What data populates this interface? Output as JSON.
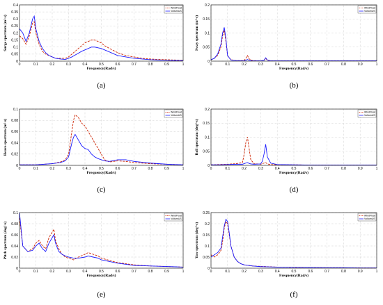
{
  "chart_data": [
    {
      "type": "line",
      "caption": "(a)",
      "xlabel": "Frequency(Rad/s)",
      "ylabel": "Surge spectrum (m²·s)",
      "xlim": [
        0,
        1
      ],
      "ylim": [
        0,
        0.4
      ],
      "xticks": [
        "0",
        "0.1",
        "0.2",
        "0.3",
        "0.4",
        "0.5",
        "0.6",
        "0.7",
        "0.8",
        "0.9",
        "1"
      ],
      "yticks": [
        "0",
        "0.05",
        "0.1",
        "0.15",
        "0.2",
        "0.25",
        "0.3",
        "0.35",
        "0.4"
      ],
      "grid": true,
      "legend": [
        "WindFloat",
        "VolturnUS"
      ],
      "legend_position": "top-right",
      "x": [
        0,
        0.02,
        0.04,
        0.06,
        0.08,
        0.09,
        0.1,
        0.12,
        0.14,
        0.16,
        0.18,
        0.2,
        0.22,
        0.25,
        0.28,
        0.3,
        0.32,
        0.35,
        0.38,
        0.4,
        0.42,
        0.44,
        0.46,
        0.48,
        0.5,
        0.52,
        0.55,
        0.6,
        0.65,
        0.7,
        0.75,
        0.8,
        0.85,
        0.9,
        0.95,
        1
      ],
      "series": [
        {
          "name": "WindFloat",
          "color": "#cc2200",
          "dash": "3,1.5",
          "values": [
            0.18,
            0.16,
            0.12,
            0.18,
            0.27,
            0.28,
            0.2,
            0.12,
            0.07,
            0.05,
            0.04,
            0.03,
            0.02,
            0.02,
            0.02,
            0.03,
            0.05,
            0.08,
            0.11,
            0.13,
            0.14,
            0.15,
            0.15,
            0.14,
            0.13,
            0.11,
            0.09,
            0.06,
            0.04,
            0.03,
            0.02,
            0.015,
            0.012,
            0.01,
            0.008,
            0.006
          ]
        },
        {
          "name": "VolturnUS",
          "color": "#1a1aff",
          "dash": "",
          "values": [
            0.23,
            0.2,
            0.14,
            0.2,
            0.3,
            0.32,
            0.23,
            0.14,
            0.09,
            0.06,
            0.04,
            0.03,
            0.02,
            0.015,
            0.012,
            0.02,
            0.03,
            0.05,
            0.07,
            0.08,
            0.09,
            0.1,
            0.1,
            0.095,
            0.09,
            0.08,
            0.065,
            0.04,
            0.03,
            0.02,
            0.015,
            0.01,
            0.008,
            0.006,
            0.005,
            0.004
          ]
        }
      ]
    },
    {
      "type": "line",
      "caption": "(b)",
      "xlabel": "Frequency(Rad/s)",
      "ylabel": "Sway spectrum (m²·s)",
      "xlim": [
        0,
        1
      ],
      "ylim": [
        0,
        0.2
      ],
      "xticks": [
        "0",
        "0.1",
        "0.2",
        "0.3",
        "0.4",
        "0.5",
        "0.6",
        "0.7",
        "0.8",
        "0.9",
        "1"
      ],
      "yticks": [
        "0",
        "0.05",
        "0.1",
        "0.15",
        "0.2"
      ],
      "grid": true,
      "legend": [
        "WindFloat",
        "VolturnUS"
      ],
      "legend_position": "top-right",
      "x": [
        0,
        0.02,
        0.04,
        0.06,
        0.07,
        0.08,
        0.09,
        0.1,
        0.12,
        0.15,
        0.2,
        0.21,
        0.22,
        0.23,
        0.25,
        0.3,
        0.32,
        0.33,
        0.34,
        0.36,
        0.4,
        0.5,
        0.6,
        0.7,
        0.8,
        0.9,
        1
      ],
      "series": [
        {
          "name": "WindFloat",
          "color": "#cc2200",
          "dash": "3,1.5",
          "values": [
            0.005,
            0.01,
            0.02,
            0.05,
            0.09,
            0.11,
            0.07,
            0.02,
            0.005,
            0.002,
            0.002,
            0.01,
            0.02,
            0.008,
            0.002,
            0.001,
            0.003,
            0.01,
            0.003,
            0.001,
            0.001,
            0.001,
            0.001,
            0.001,
            0.001,
            0.001,
            0.001
          ]
        },
        {
          "name": "VolturnUS",
          "color": "#1a1aff",
          "dash": "",
          "values": [
            0.005,
            0.01,
            0.025,
            0.06,
            0.1,
            0.12,
            0.08,
            0.02,
            0.004,
            0.002,
            0.001,
            0.003,
            0.006,
            0.003,
            0.001,
            0.001,
            0.003,
            0.012,
            0.004,
            0.001,
            0.001,
            0.001,
            0.001,
            0.001,
            0.001,
            0.001,
            0.001
          ]
        }
      ]
    },
    {
      "type": "line",
      "caption": "(c)",
      "xlabel": "Frequency(Rad/s)",
      "ylabel": "Heave spectrum (m²·s)",
      "xlim": [
        0,
        1
      ],
      "ylim": [
        0,
        0.1
      ],
      "xticks": [
        "0",
        "0.1",
        "0.2",
        "0.3",
        "0.4",
        "0.5",
        "0.6",
        "0.7",
        "0.8",
        "0.9",
        "1"
      ],
      "yticks": [
        "0",
        "0.02",
        "0.04",
        "0.06",
        "0.08",
        "0.1"
      ],
      "grid": true,
      "legend": [
        "WindFloat",
        "VolturnUS"
      ],
      "legend_position": "top-right",
      "x": [
        0,
        0.05,
        0.1,
        0.15,
        0.2,
        0.25,
        0.28,
        0.3,
        0.32,
        0.33,
        0.34,
        0.36,
        0.38,
        0.4,
        0.42,
        0.44,
        0.46,
        0.48,
        0.5,
        0.52,
        0.55,
        0.6,
        0.65,
        0.7,
        0.8,
        0.9,
        1
      ],
      "series": [
        {
          "name": "WindFloat",
          "color": "#cc2200",
          "dash": "3,1.5",
          "values": [
            0.001,
            0.001,
            0.001,
            0.002,
            0.003,
            0.006,
            0.01,
            0.02,
            0.06,
            0.08,
            0.09,
            0.085,
            0.075,
            0.07,
            0.06,
            0.05,
            0.04,
            0.03,
            0.02,
            0.01,
            0.006,
            0.008,
            0.007,
            0.005,
            0.003,
            0.002,
            0.001
          ]
        },
        {
          "name": "VolturnUS",
          "color": "#1a1aff",
          "dash": "",
          "values": [
            0.001,
            0.001,
            0.001,
            0.002,
            0.003,
            0.005,
            0.008,
            0.015,
            0.04,
            0.05,
            0.055,
            0.045,
            0.035,
            0.03,
            0.028,
            0.02,
            0.015,
            0.012,
            0.01,
            0.008,
            0.007,
            0.01,
            0.01,
            0.007,
            0.004,
            0.002,
            0.001
          ]
        }
      ]
    },
    {
      "type": "line",
      "caption": "(d)",
      "xlabel": "Frequency(Rad/s)",
      "ylabel": "Roll spectrum (deg²·s)",
      "xlim": [
        0,
        1
      ],
      "ylim": [
        0,
        0.2
      ],
      "xticks": [
        "0",
        "0.1",
        "0.2",
        "0.3",
        "0.4",
        "0.5",
        "0.6",
        "0.7",
        "0.8",
        "0.9",
        "1"
      ],
      "yticks": [
        "0",
        "0.05",
        "0.1",
        "0.15",
        "0.2"
      ],
      "grid": true,
      "legend": [
        "WindFloat",
        "VolturnUS"
      ],
      "legend_position": "top-right",
      "x": [
        0,
        0.05,
        0.1,
        0.15,
        0.19,
        0.2,
        0.21,
        0.22,
        0.23,
        0.24,
        0.26,
        0.3,
        0.31,
        0.32,
        0.33,
        0.34,
        0.36,
        0.4,
        0.5,
        0.6,
        0.7,
        0.8,
        0.9,
        1
      ],
      "series": [
        {
          "name": "WindFloat",
          "color": "#cc2200",
          "dash": "3,1.5",
          "values": [
            0.002,
            0.003,
            0.004,
            0.006,
            0.01,
            0.04,
            0.08,
            0.1,
            0.06,
            0.02,
            0.006,
            0.004,
            0.006,
            0.008,
            0.01,
            0.005,
            0.003,
            0.002,
            0.002,
            0.001,
            0.001,
            0.001,
            0.001,
            0.001
          ]
        },
        {
          "name": "VolturnUS",
          "color": "#1a1aff",
          "dash": "",
          "values": [
            0.002,
            0.002,
            0.003,
            0.004,
            0.004,
            0.006,
            0.008,
            0.01,
            0.007,
            0.005,
            0.004,
            0.005,
            0.015,
            0.04,
            0.075,
            0.03,
            0.008,
            0.003,
            0.002,
            0.001,
            0.001,
            0.001,
            0.001,
            0.001
          ]
        }
      ]
    },
    {
      "type": "line",
      "caption": "(e)",
      "xlabel": "Frequency(Rad/s)",
      "ylabel": "Pitch spectrum (deg²·s)",
      "xlim": [
        0,
        1
      ],
      "ylim": [
        0,
        0.1
      ],
      "xticks": [
        "0",
        "0.1",
        "0.2",
        "0.3",
        "0.4",
        "0.5",
        "0.6",
        "0.7",
        "0.8",
        "0.9",
        "1"
      ],
      "yticks": [
        "0",
        "0.02",
        "0.04",
        "0.06",
        "0.08",
        "0.1"
      ],
      "grid": true,
      "legend": [
        "WindFloat",
        "VolturnUS"
      ],
      "legend_position": "top-right",
      "x": [
        0,
        0.02,
        0.05,
        0.08,
        0.1,
        0.12,
        0.14,
        0.16,
        0.18,
        0.2,
        0.21,
        0.22,
        0.24,
        0.26,
        0.28,
        0.3,
        0.33,
        0.36,
        0.4,
        0.42,
        0.45,
        0.48,
        0.5,
        0.55,
        0.6,
        0.7,
        0.8,
        0.9,
        1
      ],
      "series": [
        {
          "name": "WindFloat",
          "color": "#cc2200",
          "dash": "3,1.5",
          "values": [
            0.09,
            0.04,
            0.03,
            0.035,
            0.045,
            0.05,
            0.04,
            0.035,
            0.055,
            0.065,
            0.07,
            0.05,
            0.035,
            0.025,
            0.02,
            0.018,
            0.015,
            0.02,
            0.025,
            0.028,
            0.025,
            0.022,
            0.018,
            0.014,
            0.01,
            0.006,
            0.004,
            0.003,
            0.002
          ]
        },
        {
          "name": "VolturnUS",
          "color": "#1a1aff",
          "dash": "",
          "values": [
            0.1,
            0.04,
            0.03,
            0.032,
            0.04,
            0.045,
            0.035,
            0.03,
            0.045,
            0.055,
            0.06,
            0.045,
            0.03,
            0.025,
            0.022,
            0.02,
            0.018,
            0.018,
            0.02,
            0.022,
            0.02,
            0.018,
            0.015,
            0.012,
            0.009,
            0.005,
            0.004,
            0.003,
            0.002
          ]
        }
      ]
    },
    {
      "type": "line",
      "caption": "(f)",
      "xlabel": "Frequency(Rad/s)",
      "ylabel": "Yaw spectrum (deg²·s)",
      "xlim": [
        0,
        1
      ],
      "ylim": [
        0,
        0.25
      ],
      "xticks": [
        "0",
        "0.1",
        "0.2",
        "0.3",
        "0.4",
        "0.5",
        "0.6",
        "0.7",
        "0.8",
        "0.9",
        "1"
      ],
      "yticks": [
        "0",
        "0.05",
        "0.1",
        "0.15",
        "0.2",
        "0.25"
      ],
      "grid": true,
      "legend": [
        "WindFloat",
        "VolturnUS"
      ],
      "legend_position": "top-right",
      "x": [
        0,
        0.02,
        0.04,
        0.06,
        0.07,
        0.08,
        0.09,
        0.1,
        0.11,
        0.12,
        0.14,
        0.16,
        0.18,
        0.2,
        0.25,
        0.3,
        0.4,
        0.5,
        0.6,
        0.7,
        0.8,
        0.9,
        1
      ],
      "series": [
        {
          "name": "WindFloat",
          "color": "#cc2200",
          "dash": "3,1.5",
          "values": [
            0.06,
            0.05,
            0.06,
            0.08,
            0.12,
            0.18,
            0.21,
            0.2,
            0.15,
            0.1,
            0.05,
            0.03,
            0.02,
            0.015,
            0.01,
            0.008,
            0.005,
            0.004,
            0.003,
            0.002,
            0.002,
            0.001,
            0.001
          ]
        },
        {
          "name": "VolturnUS",
          "color": "#1a1aff",
          "dash": "",
          "values": [
            0.05,
            0.06,
            0.07,
            0.09,
            0.14,
            0.19,
            0.22,
            0.21,
            0.16,
            0.1,
            0.05,
            0.03,
            0.02,
            0.015,
            0.01,
            0.007,
            0.005,
            0.004,
            0.003,
            0.002,
            0.002,
            0.001,
            0.001
          ]
        }
      ]
    }
  ]
}
